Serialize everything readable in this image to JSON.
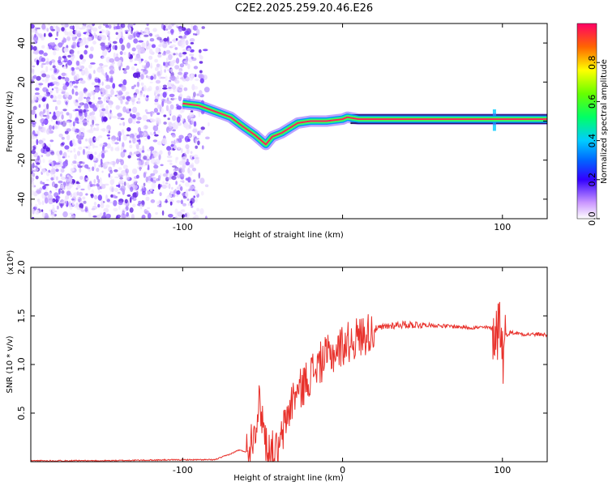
{
  "title": "C2E2.2025.259.20.46.E26",
  "chart_data": [
    {
      "type": "heatmap",
      "name": "spectrogram",
      "xlabel": "Height of straight line (km)",
      "ylabel": "Frequency (Hz)",
      "xlim": [
        -195,
        128
      ],
      "ylim": [
        -50,
        50
      ],
      "xticks": [
        -100,
        0,
        100
      ],
      "xtick_labels": [
        "-100",
        "",
        "100"
      ],
      "yticks": [
        -40,
        -20,
        0,
        20,
        40
      ],
      "ytick_labels": [
        "-40",
        "-20",
        "0",
        "20",
        "40"
      ],
      "noise_region_x": [
        -195,
        -83
      ],
      "ridge": [
        [
          -100,
          9
        ],
        [
          -90,
          8
        ],
        [
          -80,
          5
        ],
        [
          -70,
          2
        ],
        [
          -62,
          -3
        ],
        [
          -55,
          -7
        ],
        [
          -48,
          -12
        ],
        [
          -44,
          -8
        ],
        [
          -38,
          -6
        ],
        [
          -32,
          -3
        ],
        [
          -28,
          -1
        ],
        [
          -20,
          0
        ],
        [
          -10,
          0
        ],
        [
          0,
          1
        ],
        [
          3,
          2
        ],
        [
          10,
          1
        ],
        [
          50,
          1
        ],
        [
          95,
          1
        ],
        [
          128,
          1
        ]
      ],
      "colorbar": {
        "label": "Normalized spectral amplitude",
        "range": [
          0,
          1
        ],
        "ticks": [
          0.0,
          0.2,
          0.4,
          0.6,
          0.8
        ],
        "tick_labels": [
          "0.0",
          "0.2",
          "0.4",
          "0.6",
          "0.8"
        ]
      }
    },
    {
      "type": "line",
      "name": "snr",
      "xlabel": "Height of straight line (km)",
      "ylabel": "SNR (10 * v/v)",
      "y_multiplier": "(x10⁴)",
      "xlim": [
        -195,
        128
      ],
      "ylim": [
        0,
        2.0
      ],
      "xticks": [
        -100,
        0,
        100
      ],
      "xtick_labels": [
        "-100",
        "0",
        "100"
      ],
      "yticks": [
        0.5,
        1.0,
        1.5,
        2.0
      ],
      "ytick_labels": [
        "0.5",
        "1.0",
        "1.5",
        "2.0"
      ],
      "color": "#e8302a",
      "series": [
        {
          "name": "SNR",
          "x": [
            -195,
            -150,
            -100,
            -80,
            -75,
            -70,
            -65,
            -60,
            -55,
            -52,
            -50,
            -48,
            -45,
            -42,
            -40,
            -38,
            -35,
            -32,
            -30,
            -27,
            -25,
            -22,
            -20,
            -15,
            -10,
            -5,
            0,
            5,
            10,
            15,
            20,
            25,
            30,
            35,
            40,
            50,
            60,
            70,
            80,
            85,
            90,
            95,
            97,
            98,
            99,
            100,
            102,
            105,
            110,
            115,
            120,
            125,
            128
          ],
          "y": [
            0.01,
            0.01,
            0.02,
            0.02,
            0.05,
            0.08,
            0.12,
            0.1,
            0.35,
            0.6,
            0.45,
            0.2,
            0.1,
            0.12,
            0.08,
            0.25,
            0.45,
            0.6,
            0.7,
            0.72,
            0.78,
            0.85,
            0.9,
            1.0,
            1.08,
            1.12,
            1.2,
            1.24,
            1.28,
            1.32,
            1.36,
            1.38,
            1.4,
            1.41,
            1.41,
            1.41,
            1.4,
            1.39,
            1.38,
            1.38,
            1.38,
            1.37,
            1.35,
            1.5,
            1.4,
            1.1,
            1.3,
            1.33,
            1.32,
            1.31,
            1.31,
            1.31,
            1.3
          ]
        }
      ]
    }
  ]
}
